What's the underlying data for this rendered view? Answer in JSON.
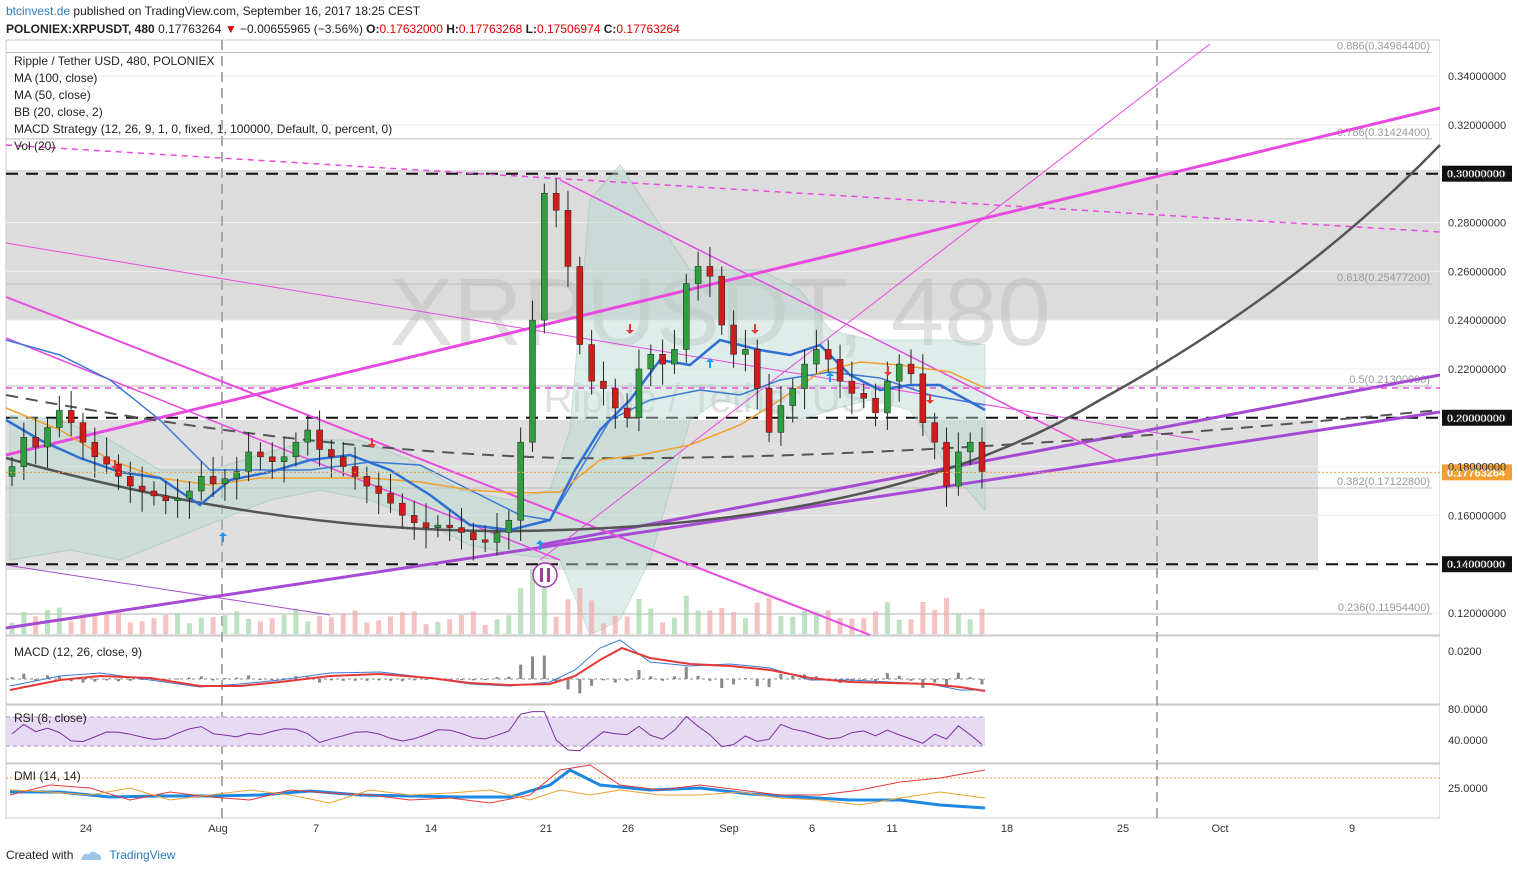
{
  "header": {
    "site": "btcinvest.de",
    "published": "published on TradingView.com, September 16, 2017 18:25 CEST",
    "symbol": "POLONIEX:XRPUSDT, 480",
    "last": "0.17763264",
    "change": "−0.00655965 (−3.56%)",
    "o_label": "O:",
    "o": "0.17632000",
    "h_label": "H:",
    "h": "0.17763268",
    "l_label": "L:",
    "l": "0.17506974",
    "c_label": "C:",
    "c": "0.17763264"
  },
  "legend": [
    "Ripple / Tether USD, 480, POLONIEX",
    "MA (100, close)",
    "MA (50, close)",
    "BB (20, close, 2)",
    "MACD Strategy (12, 26, 9, 1, 0, fixed, 1, 100000, Default, 0, percent, 0)",
    "Vol (20)"
  ],
  "watermark": {
    "line1": "XRPUSDT, 480",
    "line2": "Ripple / Tether USD"
  },
  "panels": {
    "macd": "MACD (12, 26, close, 9)",
    "rsi": "RSI (8, close)",
    "dmi": "DMI (14, 14)"
  },
  "footer": {
    "created_with": "Created with",
    "brand": "TradingView"
  },
  "chart_data": {
    "type": "candlestick",
    "price_axis": [
      "0.34000000",
      "0.32000000",
      "0.30000000",
      "0.28000000",
      "0.26000000",
      "0.24000000",
      "0.22000000",
      "0.20000000",
      "0.18000000",
      "0.16000000",
      "0.14000000",
      "0.12000000"
    ],
    "price_axis_values": [
      0.34,
      0.32,
      0.3,
      0.28,
      0.26,
      0.24,
      0.22,
      0.2,
      0.18,
      0.16,
      0.14,
      0.12
    ],
    "price_range": [
      0.1155,
      0.3515
    ],
    "marked_levels": [
      {
        "value": 0.3,
        "label": "0.30000000"
      },
      {
        "value": 0.2,
        "label": "0.20000000"
      },
      {
        "value": 0.14,
        "label": "0.14000000"
      }
    ],
    "last_price": {
      "value": 0.17763264,
      "label": "0.17763264"
    },
    "fib_levels": [
      {
        "ratio": "0.886",
        "value": 0.349644,
        "label": "0.886(0.34964400)"
      },
      {
        "ratio": "0.786",
        "value": 0.314244,
        "label": "0.786(0.31424400)"
      },
      {
        "ratio": "0.618",
        "value": 0.254772,
        "label": "0.618(0.25477200)"
      },
      {
        "ratio": "0.5",
        "value": 0.213,
        "label": "0.5(0.21300000)"
      },
      {
        "ratio": "0.382",
        "value": 0.171228,
        "label": "0.382(0.17122800)"
      },
      {
        "ratio": "0.236",
        "value": 0.119544,
        "label": "0.236(0.11954400)"
      }
    ],
    "x_axis": [
      "24",
      "Aug",
      "7",
      "14",
      "21",
      "26",
      "Sep",
      "6",
      "11",
      "18",
      "25",
      "Oct",
      "9"
    ],
    "macd_axis": [
      "0.0200"
    ],
    "rsi_axis": [
      "80.0000",
      "40.0000"
    ],
    "dmi_axis": [
      "25.0000"
    ],
    "close_series": [
      0.18,
      0.192,
      0.188,
      0.196,
      0.203,
      0.198,
      0.19,
      0.184,
      0.181,
      0.176,
      0.172,
      0.17,
      0.168,
      0.166,
      0.167,
      0.17,
      0.176,
      0.173,
      0.175,
      0.178,
      0.186,
      0.184,
      0.182,
      0.184,
      0.19,
      0.195,
      0.187,
      0.184,
      0.18,
      0.176,
      0.172,
      0.169,
      0.165,
      0.16,
      0.157,
      0.155,
      0.156,
      0.155,
      0.153,
      0.15,
      0.149,
      0.153,
      0.158,
      0.19,
      0.24,
      0.292,
      0.285,
      0.262,
      0.23,
      0.215,
      0.212,
      0.204,
      0.2,
      0.22,
      0.226,
      0.222,
      0.228,
      0.255,
      0.262,
      0.258,
      0.238,
      0.226,
      0.228,
      0.212,
      0.194,
      0.205,
      0.212,
      0.222,
      0.228,
      0.224,
      0.215,
      0.21,
      0.208,
      0.202,
      0.215,
      0.222,
      0.218,
      0.198,
      0.19,
      0.172,
      0.186,
      0.19,
      0.178
    ],
    "trendlines": "Multiple drawn trendlines (magenta/purple), a parabolic curve (dark grey), a dashed grey curve, and grey resistance/support zones."
  }
}
